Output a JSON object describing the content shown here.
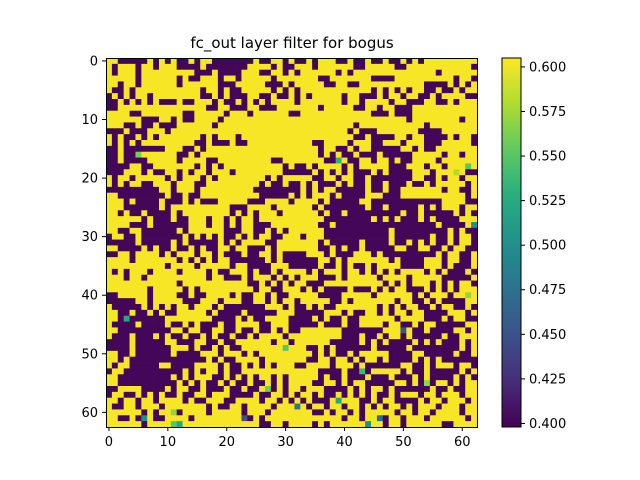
{
  "chart_data": {
    "type": "heatmap",
    "title": "fc_out layer filter for bogus",
    "xlabel": "",
    "ylabel": "",
    "rows": 63,
    "cols": 63,
    "colormap": "viridis",
    "grid": false,
    "xticks": [
      0,
      10,
      20,
      30,
      40,
      50,
      60
    ],
    "yticks": [
      0,
      10,
      20,
      30,
      40,
      50,
      60
    ],
    "colorbar": {
      "position": "right",
      "vmin": 0.398,
      "vmax": 0.605,
      "ticks": [
        "0.400",
        "0.425",
        "0.450",
        "0.475",
        "0.500",
        "0.525",
        "0.550",
        "0.575",
        "0.600"
      ]
    },
    "value_levels": {
      "high": 0.603,
      "low": 0.401
    },
    "matrix_rows": [
      "..#####.#.#.##.#..#######.##..#.##.#...##.##.##.##.#.#.........",
      ".#...#..#...####.#######....#.##...#......##.....##...........#",
      ".#...#.........###.####...##..#.#......#.#..............#......",
      ".....#......#.##...#..#.....#.......##.......####..........#..#",
      "..#..#......#......###.....###.#.....##..##...........####.#.#.",
      ".##.#...........#..#.##.....#.#.#............#.#.#.#..##.##.#..",
      "#.#.#..#........##.#.###..##.##.#.#.....#..###.#..#..##.#....##",
      "##.#.#.#.###.##...#.##.#.#.#....#.......#..#....#..###..##.#...",
      "##...............##..###..###.......#.....##..#..###...........",
      "....##.......##.....#...#......##............###.###...........",
      "......###..#.##....#...............................#........#..",
      "...##.##.###......#.......................#...........#........",
      "###.###...#..............................#.###.......####......",
      ".#.##.#.#.......#.#...#...................##.####..#..####.#..#",
      ".#.#.#.........##.###.##...........##....#...##...#...###.....#",
      "##.#######...##.#...................#..##.#..#####..#.##.......",
      "##.###......##.#....................#.#.##.###.#####.....#..#..",
      "##.####.....#....##.........##.......##..##..#..#.##....#......",
      "####..##.......#.#.#..........#.##.#....#.#.....###...#..#.....",
      "###...#.##..#.#..#...#........#####.#.#.#.###.#.####...#.....##",
      ".#..#.....#.#...#.#........#.#.....##..#..##.#######..##.#..#..",
      ".#.#..##...#...##.........#.##.##.#.###.#.##.##.###.##.#.....#.",
      "#########..#...#.........########.#.#..#####.##.##.......#..##.",
      "..########.##.##..........#####.#.#...#.####...###...........#.",
      "...#.####.###.#.###.....###....#....#.#####..############....##",
      "...######.#..........###....#......#.#######.##.#####.#.#...#..",
      "..#.##.####.#........#.#.#...#......#.##.#########.##.#####.#.#",
      "......#.###.##...#..#.#..#...........########.#.#.###.#.####...",
      "....###.######...#..#.#..###........##.#################.####.#",
      "..##..######.#......###..##.#.#......###########.#########.#.##",
      "#..##.#######.#.#.#.##.#.#..##...#...###########.######.##.#..#",
      "#####.#####.#.#####.#.#....##.......#.#####.####.##.#.#.##.#..#",
      "..####.#.##.##.#.##..#..###.#.......##.#.##.#####..##..##.#..##",
      "##..#....#.#...#..#.###.##..#.####...#.###...#.#########.#..##.",
      "....#.......#.#.#.#..######.#.######..#.#.......#.####...#..##.",
      "..........#....#.....#..####...#####.##.#.##.#....####...#.###.",
      ".#.#...#....#....#.##...#.##.#....#.#...#..#.#.#.#....#.#.###.#",
      "...#..#..........#..###.#...#.#.#...###.#.....#....#.....#####.",
      "............#...........##.#.#.#..###..........#.#.#...#.#.#..#",
      ".......#.....#.#.........#..##...#.#.####.###.#.#..###.#.#.#...",
      "##.....#....##.##....#.##..#.##.....####.....#......#.#...#....",
      "#####..#.....###...#...##..#.#..#.....##.#.......#..##.#.####..",
      ".#####.#.#.#..#...#.#######...#.##.#.##.......#.#.#..##.#..##.#",
      "..##.##.#.##.....#.####.#####...#####...#.##..#.#..#..####...#.",
      "..########........####.#.##....####.#.##.##......#....###.#..##",
      ".####.####.##.#.###.##....##...#####.###.##....#..##.#..#####..",
      "..#########..#..##..##.##.##.#.##.......#######.....##.####..#.",
      ".###.###.#.##.##.#.##.##.#....#.........###.##.#..#.#####.##...",
      "####.#####..###..##.##......#..#......#####.#.#.####.#.#.###.#.",
      "####.######...#.##.#.##...........##.#.######.#####.########.#.",
      "..##.######.####...#...#.#.........#.#.##.#.....####..#####.##.",
      "..#.#############.#.##....#.......##..#..#.#..#.####.#.#.######",
      ".#..#####..####....#.##.#.#.#...##....#...#.######..##.#...#..#",
      "#..##########.#.#..#.##.............####.##.#.....#.##.#####.#.",
      "..#########.#.#...##.#.#.#..#.#.....#.##.###.###.###.#.####.#.#",
      "..##########.#.#.##.#.##.##.#.#....##..#.#..#####..#.#.#..#.#..",
      "##....####.#..##.###.##.##.##.#..#...####.#.#..#.######.##.##..",
      "#..##.#.#.##.##..#...####.##..#.#..#.##.#.#.#.##.#...#..#...#..",
      "..#..#..#....#.##...##....#..#.#.#.###.#...##.#..####.#..#...#.",
      ".##..#...#.......#.##..#....#.....#..#..#..#.#.#..#.#...#...#..#",
      "......#.#...#....#.....#...#.......##.#..#.#.....#..#..#....#..",
      "..##.#..##....#.........#.#.............#..#...#..#...#......#.",
      "......#...................##..#....#.#.........#..#......##...."
    ],
    "accent_cells": [
      {
        "row": 16,
        "col": 5,
        "value": 0.56
      },
      {
        "row": 17,
        "col": 39,
        "value": 0.53
      },
      {
        "row": 18,
        "col": 61,
        "value": 0.55
      },
      {
        "row": 19,
        "col": 59,
        "value": 0.58
      },
      {
        "row": 28,
        "col": 62,
        "value": 0.5
      },
      {
        "row": 40,
        "col": 61,
        "value": 0.57
      },
      {
        "row": 44,
        "col": 3,
        "value": 0.52
      },
      {
        "row": 46,
        "col": 50,
        "value": 0.45
      },
      {
        "row": 49,
        "col": 30,
        "value": 0.55
      },
      {
        "row": 53,
        "col": 43,
        "value": 0.54
      },
      {
        "row": 55,
        "col": 54,
        "value": 0.57
      },
      {
        "row": 56,
        "col": 27,
        "value": 0.56
      },
      {
        "row": 58,
        "col": 39,
        "value": 0.52
      },
      {
        "row": 59,
        "col": 32,
        "value": 0.48
      },
      {
        "row": 60,
        "col": 11,
        "value": 0.57
      },
      {
        "row": 61,
        "col": 6,
        "value": 0.5
      },
      {
        "row": 61,
        "col": 23,
        "value": 0.45
      },
      {
        "row": 61,
        "col": 46,
        "value": 0.47
      },
      {
        "row": 62,
        "col": 11,
        "value": 0.55
      },
      {
        "row": 62,
        "col": 12,
        "value": 0.52
      },
      {
        "row": 62,
        "col": 44,
        "value": 0.5
      }
    ]
  }
}
